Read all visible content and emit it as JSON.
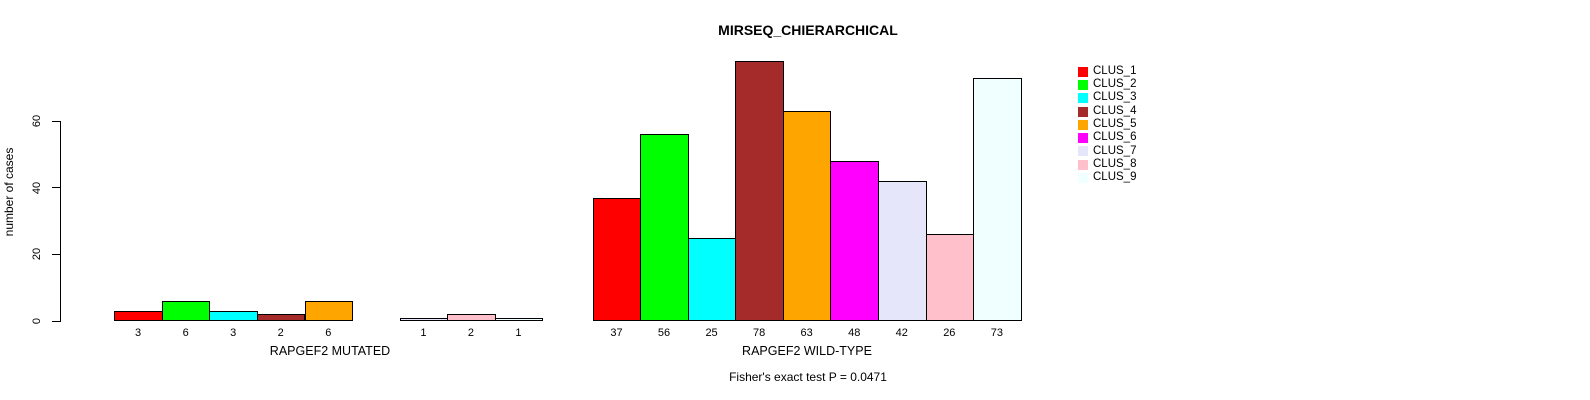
{
  "chart_data": {
    "type": "bar",
    "title": "MIRSEQ_CHIERARCHICAL",
    "ylabel": "number of cases",
    "xlabel": "",
    "ylim": [
      0,
      80
    ],
    "yticks": [
      0,
      20,
      40,
      60
    ],
    "grid": false,
    "legend_position": "top-right",
    "group_labels": [
      "RAPGEF2 MUTATED",
      "RAPGEF2 WILD-TYPE"
    ],
    "annotation": "Fisher's exact test P = 0.0471",
    "series": [
      {
        "name": "CLUS_1",
        "color": "#FF0000",
        "values": [
          3,
          37
        ]
      },
      {
        "name": "CLUS_2",
        "color": "#00FF00",
        "values": [
          6,
          56
        ]
      },
      {
        "name": "CLUS_3",
        "color": "#00FFFF",
        "values": [
          3,
          25
        ]
      },
      {
        "name": "CLUS_4",
        "color": "#A52A2A",
        "values": [
          2,
          78
        ]
      },
      {
        "name": "CLUS_5",
        "color": "#FFA500",
        "values": [
          6,
          63
        ]
      },
      {
        "name": "CLUS_6",
        "color": "#FF00FF",
        "values": [
          0,
          48
        ]
      },
      {
        "name": "CLUS_7",
        "color": "#E6E6FA",
        "values": [
          1,
          42
        ]
      },
      {
        "name": "CLUS_8",
        "color": "#FFC0CB",
        "values": [
          2,
          26
        ]
      },
      {
        "name": "CLUS_9",
        "color": "#F0FFFF",
        "values": [
          1,
          73
        ]
      }
    ]
  }
}
